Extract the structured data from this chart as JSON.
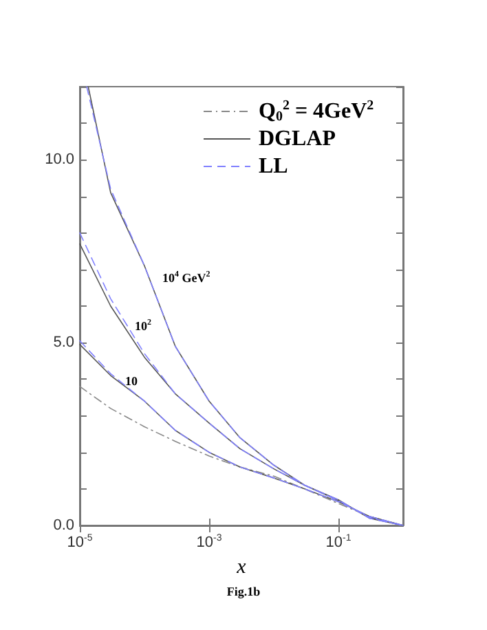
{
  "chart_data": {
    "type": "line",
    "xlabel": "x",
    "log": "x",
    "xlim": [
      1e-05,
      1
    ],
    "ylim": [
      0,
      12
    ],
    "xticks": [
      {
        "value": 1e-05,
        "label": "10$^{-5}$"
      },
      {
        "value": 0.001,
        "label": "10$^{-3}$"
      },
      {
        "value": 0.1,
        "label": "10$^{-1}$"
      }
    ],
    "yticks": [
      {
        "value": 0,
        "label": "0.0"
      },
      {
        "value": 1,
        "label": null
      },
      {
        "value": 2,
        "label": null
      },
      {
        "value": 3,
        "label": null
      },
      {
        "value": 4,
        "label": null
      },
      {
        "value": 5,
        "label": "5.0"
      },
      {
        "value": 6,
        "label": null
      },
      {
        "value": 7,
        "label": null
      },
      {
        "value": 8,
        "label": null
      },
      {
        "value": 9,
        "label": null
      },
      {
        "value": 10,
        "label": "10.0"
      },
      {
        "value": 11,
        "label": null
      },
      {
        "value": 12,
        "label": null
      }
    ],
    "grid": false,
    "legend": "top right",
    "marker": "none",
    "series": [
      {
        "name": "Q$_{0}$$^{2}$ = 4GeV$^{2}$",
        "color": "#888888",
        "line_style": "dashdot",
        "x": [
          1e-05,
          3e-05,
          0.0001,
          0.0003,
          0.001,
          0.003,
          0.01,
          0.03,
          0.1,
          0.3,
          1
        ],
        "values": [
          3.8,
          3.2,
          2.7,
          2.3,
          1.9,
          1.6,
          1.35,
          1.0,
          0.6,
          0.25,
          0
        ]
      },
      {
        "name": "DGLAP",
        "color": "#555555",
        "line_style": "solid",
        "x": [
          1e-05,
          3e-05,
          0.0001,
          0.0003,
          0.001,
          0.003,
          0.01,
          0.03,
          0.1,
          0.3,
          1
        ],
        "values": [
          4.95,
          4.1,
          3.4,
          2.6,
          2.0,
          1.6,
          1.3,
          1.0,
          0.65,
          0.25,
          0
        ]
      },
      {
        "color": "#555555",
        "line_style": "solid",
        "x": [
          1e-05,
          3e-05,
          0.0001,
          0.0003,
          0.001,
          0.003,
          0.01,
          0.03,
          0.1,
          0.3,
          1
        ],
        "values": [
          7.7,
          6.0,
          4.6,
          3.6,
          2.8,
          2.1,
          1.55,
          1.1,
          0.68,
          0.22,
          0
        ]
      },
      {
        "color": "#555555",
        "line_style": "solid",
        "x": [
          1.35e-05,
          3e-05,
          0.0001,
          0.0003,
          0.001,
          0.003,
          0.01,
          0.03,
          0.1,
          0.3,
          1
        ],
        "values": [
          12,
          9.1,
          7.1,
          4.9,
          3.4,
          2.4,
          1.65,
          1.1,
          0.7,
          0.2,
          0
        ]
      },
      {
        "name": "LL",
        "color": "#8080ff",
        "line_style": "dashed",
        "x": [
          1e-05,
          3e-05,
          0.0001,
          0.0003,
          0.001,
          0.003,
          0.01,
          0.03,
          0.1,
          0.3,
          1
        ],
        "values": [
          5.05,
          4.15,
          3.4,
          2.6,
          2.0,
          1.6,
          1.3,
          1.0,
          0.65,
          0.25,
          0
        ]
      },
      {
        "color": "#8080ff",
        "line_style": "dashed",
        "x": [
          1e-05,
          3e-05,
          0.0001,
          0.0003,
          0.001,
          0.003,
          0.01,
          0.03,
          0.1,
          0.3,
          1
        ],
        "values": [
          8.0,
          6.2,
          4.7,
          3.6,
          2.8,
          2.1,
          1.55,
          1.1,
          0.68,
          0.22,
          0
        ]
      },
      {
        "color": "#8080ff",
        "line_style": "dashed",
        "x": [
          1.28e-05,
          3e-05,
          0.0001,
          0.0003,
          0.001,
          0.003,
          0.01,
          0.03,
          0.1,
          0.3,
          1
        ],
        "values": [
          12,
          9.2,
          7.1,
          4.9,
          3.4,
          2.4,
          1.65,
          1.1,
          0.7,
          0.2,
          0
        ]
      }
    ],
    "annotations": [
      "10$^{4}$ GeV$^{2}$",
      "10$^{2}$",
      "10",
      "Fig.1b"
    ]
  }
}
